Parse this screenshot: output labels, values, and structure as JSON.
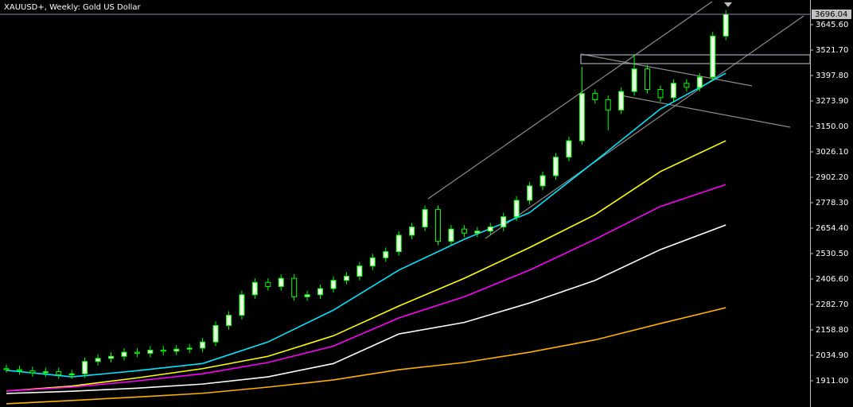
{
  "chart_data": {
    "type": "candlestick",
    "title": "XAUUSD+, Weekly:  Gold US Dollar",
    "up_color": "#e8ffe0",
    "down_color": "#000000",
    "wick_color": "#00ff00",
    "open": [
      1970,
      1965,
      1960,
      1950,
      1955,
      1940,
      1945,
      2005,
      2020,
      2030,
      2050,
      2045,
      2060,
      2055,
      2065,
      2070,
      2100,
      2180,
      2230,
      2330,
      2390,
      2370,
      2410,
      2320,
      2330,
      2360,
      2400,
      2420,
      2470,
      2510,
      2540,
      2620,
      2660,
      2745,
      2590,
      2650,
      2630,
      2640,
      2660,
      2710,
      2790,
      2860,
      2910,
      3000,
      3080,
      3310,
      3280,
      3230,
      3320,
      3430,
      3330,
      3290,
      3360,
      3340,
      3390,
      3590
    ],
    "high": [
      1990,
      1985,
      1980,
      1975,
      1975,
      1965,
      2025,
      2040,
      2050,
      2070,
      2070,
      2080,
      2080,
      2085,
      2090,
      2120,
      2200,
      2250,
      2350,
      2410,
      2410,
      2430,
      2430,
      2350,
      2380,
      2420,
      2440,
      2490,
      2530,
      2560,
      2640,
      2680,
      2765,
      2765,
      2670,
      2670,
      2660,
      2680,
      2730,
      2810,
      2880,
      2930,
      3020,
      3100,
      3440,
      3330,
      3300,
      3340,
      3500,
      3450,
      3350,
      3380,
      3380,
      3410,
      3610,
      3716
    ],
    "low": [
      1950,
      1940,
      1930,
      1930,
      1920,
      1920,
      1925,
      1985,
      2000,
      2010,
      2025,
      2025,
      2035,
      2035,
      2045,
      2050,
      2080,
      2160,
      2210,
      2310,
      2350,
      2350,
      2300,
      2300,
      2310,
      2340,
      2380,
      2400,
      2450,
      2490,
      2520,
      2600,
      2640,
      2570,
      2570,
      2610,
      2610,
      2620,
      2640,
      2690,
      2770,
      2840,
      2890,
      2980,
      3060,
      3260,
      3130,
      3210,
      3300,
      3310,
      3270,
      3270,
      3320,
      3320,
      3370,
      3570
    ],
    "close": [
      1965,
      1960,
      1950,
      1955,
      1940,
      1945,
      2005,
      2020,
      2030,
      2050,
      2045,
      2060,
      2055,
      2065,
      2070,
      2100,
      2180,
      2230,
      2330,
      2390,
      2370,
      2410,
      2320,
      2330,
      2360,
      2400,
      2420,
      2470,
      2510,
      2540,
      2620,
      2660,
      2745,
      2590,
      2650,
      2630,
      2640,
      2660,
      2710,
      2790,
      2860,
      2910,
      3000,
      3080,
      3310,
      3280,
      3230,
      3320,
      3430,
      3330,
      3290,
      3360,
      3340,
      3390,
      3590,
      3696.04
    ],
    "last_price": 3696.04,
    "overlays": [
      {
        "type": "line",
        "color": "#00e5ff",
        "x": [
          0,
          5,
          10,
          15,
          20,
          25,
          30,
          35,
          40,
          45,
          50,
          55
        ],
        "values": [
          1962,
          1930,
          1960,
          1995,
          2100,
          2255,
          2450,
          2600,
          2730,
          2980,
          3235,
          3409
        ]
      },
      {
        "type": "line",
        "color": "#ffff00",
        "x": [
          0,
          5,
          10,
          15,
          20,
          25,
          30,
          35,
          40,
          45,
          50,
          55
        ],
        "values": [
          1861,
          1885,
          1925,
          1970,
          2030,
          2130,
          2275,
          2410,
          2560,
          2720,
          2930,
          3080
        ]
      },
      {
        "type": "line",
        "color": "#ff00ff",
        "x": [
          0,
          5,
          10,
          15,
          20,
          25,
          30,
          35,
          40,
          45,
          50,
          55
        ],
        "values": [
          1861,
          1880,
          1910,
          1945,
          2000,
          2080,
          2217,
          2320,
          2450,
          2600,
          2760,
          2867
        ]
      },
      {
        "type": "line",
        "color": "#ffffff",
        "x": [
          0,
          5,
          10,
          15,
          20,
          25,
          30,
          35,
          40,
          45,
          50,
          55
        ],
        "values": [
          1849,
          1860,
          1875,
          1895,
          1930,
          1995,
          2139,
          2195,
          2290,
          2400,
          2550,
          2670
        ]
      },
      {
        "type": "line",
        "color": "#ffb000",
        "x": [
          0,
          5,
          10,
          15,
          20,
          25,
          30,
          35,
          40,
          45,
          50,
          55
        ],
        "values": [
          1799,
          1815,
          1832,
          1850,
          1880,
          1915,
          1965,
          2000,
          2050,
          2110,
          2190,
          2267
        ]
      }
    ],
    "ylim": [
      1783.2,
      3765.6
    ],
    "yticks": [
      {
        "value": 1911,
        "label": "1911.00"
      },
      {
        "value": 2034.9,
        "label": "2034.90"
      },
      {
        "value": 2158.8,
        "label": "2158.80"
      },
      {
        "value": 2282.7,
        "label": "2282.70"
      },
      {
        "value": 2406.6,
        "label": "2406.60"
      },
      {
        "value": 2530.5,
        "label": "2530.50"
      },
      {
        "value": 2654.4,
        "label": "2654.40"
      },
      {
        "value": 2778.3,
        "label": "2778.30"
      },
      {
        "value": 2902.2,
        "label": "2902.20"
      },
      {
        "value": 3026.1,
        "label": "3026.10"
      },
      {
        "value": 3150,
        "label": "3150.00"
      },
      {
        "value": 3273.9,
        "label": "3273.90"
      },
      {
        "value": 3397.8,
        "label": "3397.80"
      },
      {
        "value": 3521.7,
        "label": "3521.70"
      },
      {
        "value": 3645.6,
        "label": "3645.60"
      }
    ]
  }
}
